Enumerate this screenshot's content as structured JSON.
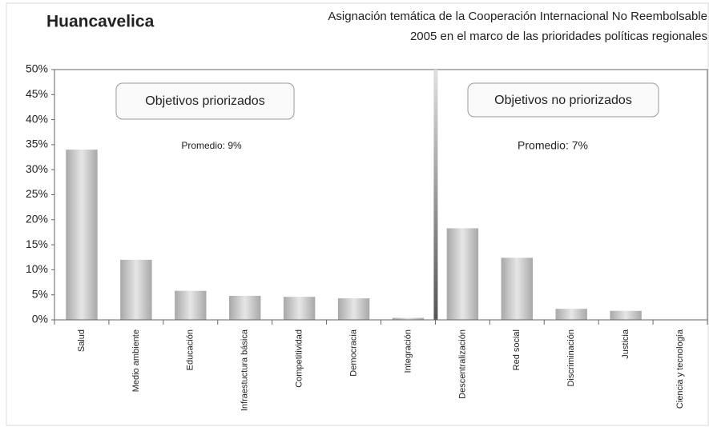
{
  "chart_data": {
    "type": "bar",
    "title": "Huancavelica",
    "subtitle_lines": [
      "Asignación temática de la Cooperación Internacional No Reembolsable",
      "2005 en el marco de las prioridades políticas regionales"
    ],
    "annotations": [
      "Objetivos priorizados",
      "Objetivos no priorizados",
      "Promedio: 9%",
      "Promedio: 7%"
    ],
    "categories": [
      "Salud",
      "Medio ambiente",
      "Educación",
      "Infraestuctura básica",
      "Competitividad",
      "Democracia",
      "Integración",
      "Descentralización",
      "Red social",
      "Discriminación",
      "Justicia",
      "Ciencia y tecnología"
    ],
    "values": [
      34,
      12,
      5.8,
      4.8,
      4.6,
      4.3,
      0.4,
      18.3,
      12.4,
      2.2,
      1.8,
      0
    ],
    "color": "#c8c8c8",
    "ylim": [
      0,
      50
    ],
    "yticks": [
      {
        "value": 0,
        "label": "0%"
      },
      {
        "value": 5,
        "label": "5%"
      },
      {
        "value": 10,
        "label": "10%"
      },
      {
        "value": 15,
        "label": "15%"
      },
      {
        "value": 20,
        "label": "20%"
      },
      {
        "value": 25,
        "label": "25%"
      },
      {
        "value": 30,
        "label": "30%"
      },
      {
        "value": 35,
        "label": "35%"
      },
      {
        "value": 40,
        "label": "40%"
      },
      {
        "value": 45,
        "label": "45%"
      },
      {
        "value": 50,
        "label": "50%"
      }
    ]
  }
}
